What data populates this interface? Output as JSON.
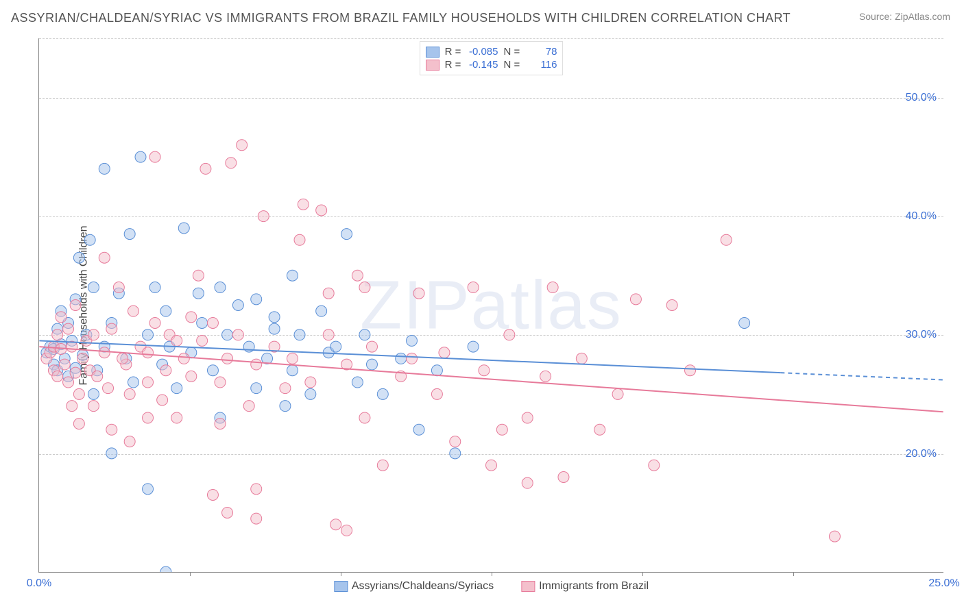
{
  "title": "ASSYRIAN/CHALDEAN/SYRIAC VS IMMIGRANTS FROM BRAZIL FAMILY HOUSEHOLDS WITH CHILDREN CORRELATION CHART",
  "source": "Source: ZipAtlas.com",
  "watermark": "ZIPatlas",
  "ylabel": "Family Households with Children",
  "chart": {
    "type": "scatter",
    "xlim": [
      0,
      25
    ],
    "ylim": [
      10,
      55
    ],
    "xticks": [
      0,
      25
    ],
    "xtick_labels": [
      "0.0%",
      "25.0%"
    ],
    "xtick_minor": [
      4.17,
      8.33,
      12.5,
      16.67,
      20.83
    ],
    "yticks": [
      20,
      30,
      40,
      50
    ],
    "ytick_labels": [
      "20.0%",
      "30.0%",
      "40.0%",
      "50.0%"
    ],
    "background_color": "#ffffff",
    "grid_color": "#cccccc",
    "axis_color": "#888888",
    "tick_label_color": "#3b6fd4",
    "marker_radius": 8,
    "marker_opacity": 0.5,
    "line_width": 2
  },
  "series": [
    {
      "name": "Assyrians/Chaldeans/Syriacs",
      "color_fill": "#a6c4ec",
      "color_stroke": "#5a8fd6",
      "r": "-0.085",
      "n": "78",
      "trend": {
        "x1": 0,
        "y1": 29.5,
        "x2": 20.5,
        "y2": 26.8,
        "x2_dash": 25,
        "y2_dash": 26.2
      },
      "points": [
        [
          0.2,
          28.5
        ],
        [
          0.3,
          29
        ],
        [
          0.4,
          27.5
        ],
        [
          0.4,
          28.8
        ],
        [
          0.5,
          30.5
        ],
        [
          0.5,
          27
        ],
        [
          0.6,
          29.2
        ],
        [
          0.6,
          32
        ],
        [
          0.7,
          28
        ],
        [
          0.8,
          31
        ],
        [
          0.8,
          26.5
        ],
        [
          0.9,
          29.5
        ],
        [
          1.0,
          33
        ],
        [
          1.0,
          27.2
        ],
        [
          1.1,
          36.5
        ],
        [
          1.2,
          28.3
        ],
        [
          1.3,
          30
        ],
        [
          1.4,
          38
        ],
        [
          1.5,
          34
        ],
        [
          1.5,
          25
        ],
        [
          1.6,
          27
        ],
        [
          1.8,
          29
        ],
        [
          1.8,
          44
        ],
        [
          2.0,
          31
        ],
        [
          2.0,
          20
        ],
        [
          2.2,
          33.5
        ],
        [
          2.4,
          28
        ],
        [
          2.5,
          38.5
        ],
        [
          2.6,
          26
        ],
        [
          2.8,
          45
        ],
        [
          3.0,
          30
        ],
        [
          3.0,
          17
        ],
        [
          3.2,
          34
        ],
        [
          3.4,
          27.5
        ],
        [
          3.5,
          32
        ],
        [
          3.6,
          29
        ],
        [
          3.8,
          25.5
        ],
        [
          4.0,
          39
        ],
        [
          4.2,
          28.5
        ],
        [
          4.4,
          33.5
        ],
        [
          4.5,
          31
        ],
        [
          4.8,
          27
        ],
        [
          5.0,
          23
        ],
        [
          5.0,
          34
        ],
        [
          5.2,
          30
        ],
        [
          5.5,
          32.5
        ],
        [
          5.8,
          29
        ],
        [
          6.0,
          25.5
        ],
        [
          6.0,
          33
        ],
        [
          6.3,
          28
        ],
        [
          6.5,
          31.5
        ],
        [
          6.8,
          24
        ],
        [
          7.0,
          27
        ],
        [
          7.2,
          30
        ],
        [
          7.5,
          25
        ],
        [
          7.8,
          32
        ],
        [
          8.0,
          28.5
        ],
        [
          8.2,
          29
        ],
        [
          8.5,
          38.5
        ],
        [
          8.8,
          26
        ],
        [
          9.0,
          30
        ],
        [
          9.2,
          27.5
        ],
        [
          9.5,
          25
        ],
        [
          10.0,
          28
        ],
        [
          10.3,
          29.5
        ],
        [
          10.5,
          22
        ],
        [
          11.0,
          27
        ],
        [
          11.5,
          20
        ],
        [
          12.0,
          29
        ],
        [
          3.5,
          10
        ],
        [
          19.5,
          31
        ],
        [
          6.5,
          30.5
        ],
        [
          7.0,
          35
        ]
      ]
    },
    {
      "name": "Immigrants from Brazil",
      "color_fill": "#f4c0cc",
      "color_stroke": "#e77a9a",
      "r": "-0.145",
      "n": "116",
      "trend": {
        "x1": 0,
        "y1": 29,
        "x2": 25,
        "y2": 23.5
      },
      "points": [
        [
          0.2,
          28
        ],
        [
          0.3,
          28.5
        ],
        [
          0.4,
          27
        ],
        [
          0.4,
          29
        ],
        [
          0.5,
          30
        ],
        [
          0.5,
          26.5
        ],
        [
          0.6,
          28.8
        ],
        [
          0.6,
          31.5
        ],
        [
          0.7,
          27.5
        ],
        [
          0.8,
          30.5
        ],
        [
          0.8,
          26
        ],
        [
          0.9,
          29
        ],
        [
          1.0,
          32.5
        ],
        [
          1.0,
          26.8
        ],
        [
          1.1,
          25
        ],
        [
          1.2,
          28
        ],
        [
          1.3,
          29.5
        ],
        [
          1.4,
          27
        ],
        [
          1.5,
          24
        ],
        [
          1.5,
          30
        ],
        [
          1.6,
          26.5
        ],
        [
          1.8,
          28.5
        ],
        [
          1.8,
          36.5
        ],
        [
          2.0,
          30.5
        ],
        [
          2.0,
          22
        ],
        [
          2.2,
          34
        ],
        [
          2.4,
          27.5
        ],
        [
          2.5,
          25
        ],
        [
          2.6,
          32
        ],
        [
          2.8,
          29
        ],
        [
          3.0,
          26
        ],
        [
          3.0,
          28.5
        ],
        [
          3.2,
          31
        ],
        [
          3.4,
          24.5
        ],
        [
          3.5,
          27
        ],
        [
          3.6,
          30
        ],
        [
          3.8,
          23
        ],
        [
          4.0,
          28
        ],
        [
          4.2,
          26.5
        ],
        [
          4.4,
          35
        ],
        [
          4.5,
          29.5
        ],
        [
          4.8,
          31
        ],
        [
          5.0,
          26
        ],
        [
          5.0,
          22.5
        ],
        [
          5.2,
          28
        ],
        [
          5.3,
          44.5
        ],
        [
          5.5,
          30
        ],
        [
          5.8,
          24
        ],
        [
          5.6,
          46
        ],
        [
          6.0,
          27.5
        ],
        [
          6.0,
          17
        ],
        [
          6.2,
          40
        ],
        [
          6.5,
          29
        ],
        [
          6.8,
          25.5
        ],
        [
          7.0,
          28
        ],
        [
          7.2,
          38
        ],
        [
          7.5,
          26
        ],
        [
          7.8,
          40.5
        ],
        [
          8.0,
          30
        ],
        [
          8.2,
          14
        ],
        [
          8.5,
          27.5
        ],
        [
          8.8,
          35
        ],
        [
          9.0,
          23
        ],
        [
          9.2,
          29
        ],
        [
          9.5,
          19
        ],
        [
          10.0,
          26.5
        ],
        [
          10.3,
          28
        ],
        [
          10.5,
          33.5
        ],
        [
          11.0,
          25
        ],
        [
          11.5,
          21
        ],
        [
          12.0,
          34
        ],
        [
          12.3,
          27
        ],
        [
          12.5,
          19
        ],
        [
          13.0,
          30
        ],
        [
          13.5,
          23
        ],
        [
          14.0,
          26.5
        ],
        [
          14.2,
          34
        ],
        [
          14.5,
          18
        ],
        [
          15.0,
          28
        ],
        [
          15.5,
          22
        ],
        [
          16.0,
          25
        ],
        [
          16.5,
          33
        ],
        [
          17.0,
          19
        ],
        [
          17.5,
          32.5
        ],
        [
          18.0,
          27
        ],
        [
          19.0,
          38
        ],
        [
          22.0,
          13
        ],
        [
          3.2,
          45
        ],
        [
          4.6,
          44
        ],
        [
          7.3,
          41
        ],
        [
          8.0,
          33.5
        ],
        [
          9.0,
          34
        ],
        [
          5.2,
          15
        ],
        [
          4.8,
          16.5
        ],
        [
          13.5,
          17.5
        ],
        [
          6.0,
          14.5
        ],
        [
          2.5,
          21
        ],
        [
          3.8,
          29.5
        ],
        [
          4.2,
          31.5
        ],
        [
          1.9,
          25.5
        ],
        [
          2.3,
          28
        ],
        [
          11.2,
          28.5
        ],
        [
          8.5,
          13.5
        ],
        [
          0.9,
          24
        ],
        [
          1.1,
          22.5
        ],
        [
          3.0,
          23
        ],
        [
          12.8,
          22
        ]
      ]
    }
  ],
  "legend_stats": {
    "r_label": "R =",
    "n_label": "N ="
  }
}
